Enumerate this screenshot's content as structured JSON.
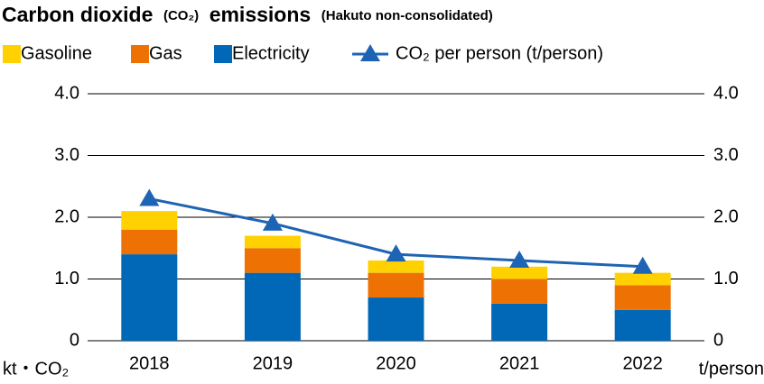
{
  "chart_data": {
    "type": "bar",
    "stacked": true,
    "title": [
      "Carbon dioxide",
      "(CO₂)",
      "emissions",
      "(Hakuto non-consolidated)"
    ],
    "categories": [
      "2018",
      "2019",
      "2020",
      "2021",
      "2022"
    ],
    "series": [
      {
        "name": "Gasoline",
        "color": "#ffd100",
        "values": [
          0.3,
          0.2,
          0.2,
          0.2,
          0.2
        ]
      },
      {
        "name": "Gas",
        "color": "#ee7203",
        "values": [
          0.4,
          0.4,
          0.4,
          0.4,
          0.4
        ]
      },
      {
        "name": "Electricity",
        "color": "#0068b7",
        "values": [
          1.4,
          1.1,
          0.7,
          0.6,
          0.5
        ]
      },
      {
        "name": "CO₂ per person (t/person)",
        "color": "#1e64b4",
        "type": "line",
        "axis": "y2",
        "values": [
          2.3,
          1.9,
          1.4,
          1.3,
          1.2
        ]
      }
    ],
    "ylabel": "kt・CO₂",
    "y2label": "t/person",
    "ylim": [
      0,
      4
    ],
    "yticks": [
      0,
      {
        "value": 1,
        "label": "1.0"
      },
      {
        "value": 2,
        "label": "2.0"
      },
      {
        "value": 3,
        "label": "3.0"
      },
      {
        "value": 4,
        "label": "4.0"
      }
    ],
    "y2lim": [
      0,
      4
    ],
    "y2ticks": [
      0,
      {
        "value": 1,
        "label": "1.0"
      },
      {
        "value": 2,
        "label": "2.0"
      },
      {
        "value": 3,
        "label": "3.0"
      },
      {
        "value": 4,
        "label": "4.0"
      }
    ],
    "grid": true
  }
}
